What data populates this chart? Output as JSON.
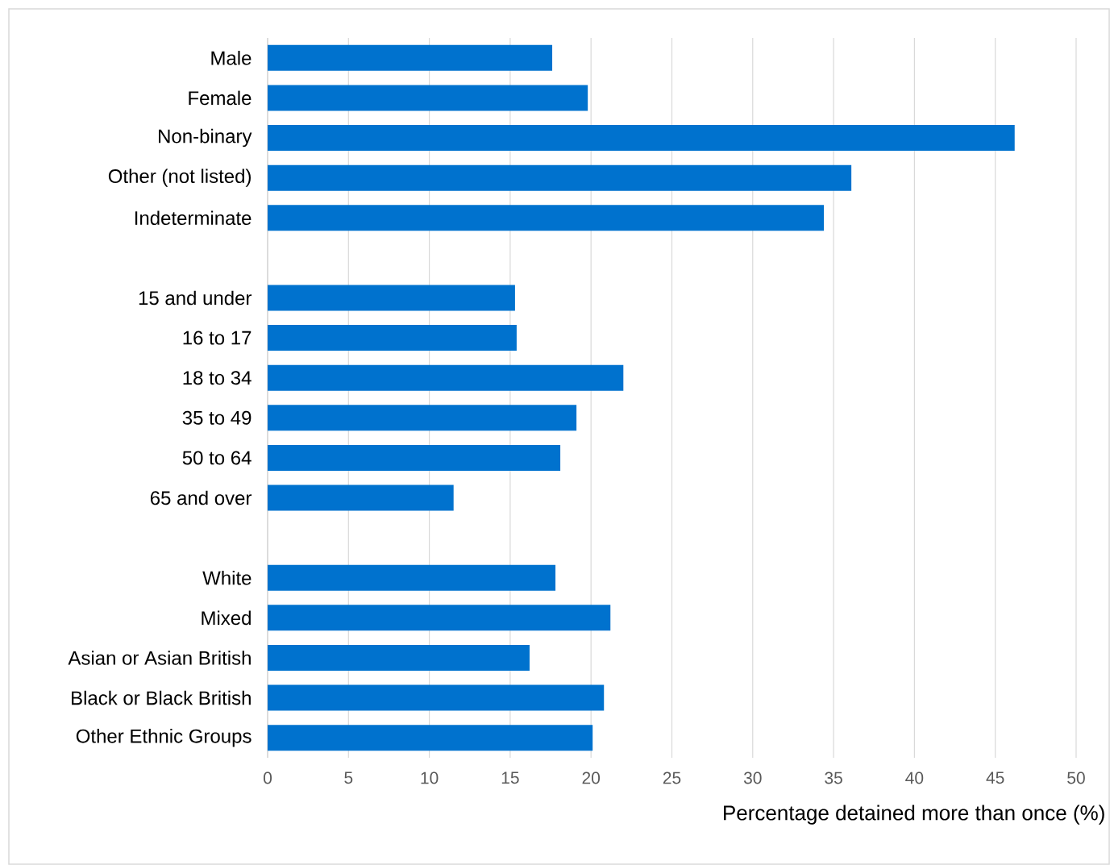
{
  "chart_data": {
    "type": "bar",
    "orientation": "horizontal",
    "xlabel": "Percentage detained more than once (%)",
    "categories": [
      "Male",
      "Female",
      "Non-binary",
      "Other (not listed)",
      "Indeterminate",
      null,
      "15 and under",
      "16 to 17",
      "18 to 34",
      "35 to 49",
      "50 to 64",
      "65 and over",
      null,
      "White",
      "Mixed",
      "Asian or Asian British",
      "Black or Black British",
      "Other Ethnic Groups"
    ],
    "values": [
      17.6,
      19.8,
      46.2,
      36.1,
      34.4,
      null,
      15.3,
      15.4,
      22.0,
      19.1,
      18.1,
      11.5,
      null,
      17.8,
      21.2,
      16.2,
      20.8,
      20.1
    ],
    "color": "#0072ce",
    "xlim": [
      0,
      50
    ],
    "xticks": [
      0,
      5,
      10,
      15,
      20,
      25,
      30,
      35,
      40,
      45,
      50
    ],
    "grid": "x"
  }
}
